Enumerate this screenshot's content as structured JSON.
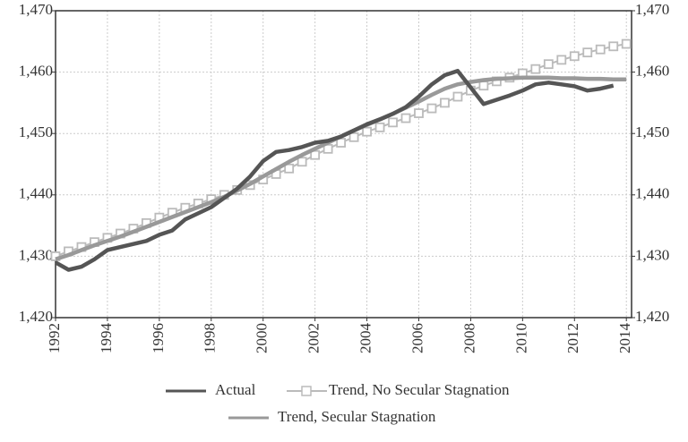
{
  "chart_data": {
    "type": "line",
    "x": [
      1992,
      1992.5,
      1993,
      1993.5,
      1994,
      1994.5,
      1995,
      1995.5,
      1996,
      1996.5,
      1997,
      1997.5,
      1998,
      1998.5,
      1999,
      1999.5,
      2000,
      2000.5,
      2001,
      2001.5,
      2002,
      2002.5,
      2003,
      2003.5,
      2004,
      2004.5,
      2005,
      2005.5,
      2006,
      2006.5,
      2007,
      2007.5,
      2008,
      2008.5,
      2009,
      2009.5,
      2010,
      2010.5,
      2011,
      2011.5,
      2012,
      2012.5,
      2013,
      2013.5,
      2014
    ],
    "series": [
      {
        "name": "Actual",
        "color": "#555555",
        "marker": false,
        "values": [
          1429,
          1427.8,
          1428.3,
          1429.5,
          1431,
          1431.5,
          1432,
          1432.5,
          1433.5,
          1434.2,
          1436,
          1437,
          1438,
          1439.5,
          1441,
          1443,
          1445.5,
          1447,
          1447.3,
          1447.8,
          1448.5,
          1448.8,
          1449.5,
          1450.5,
          1451.5,
          1452.3,
          1453.2,
          1454.3,
          1456,
          1458,
          1459.5,
          1460.2,
          1457.5,
          1454.8,
          1455.5,
          1456.2,
          1457,
          1458,
          1458.3,
          1458,
          1457.7,
          1457,
          1457.3,
          1457.8,
          null
        ]
      },
      {
        "name": "Trend, No Secular Stagnation",
        "color": "#bbbbbb",
        "marker": true,
        "values": [
          1430,
          1430.8,
          1431.5,
          1432.3,
          1433,
          1433.7,
          1434.5,
          1435.4,
          1436.3,
          1437.1,
          1437.9,
          1438.6,
          1439.3,
          1440,
          1440.8,
          1441.6,
          1442.5,
          1443.4,
          1444.3,
          1445.4,
          1446.5,
          1447.5,
          1448.5,
          1449.4,
          1450.3,
          1451,
          1451.8,
          1452.5,
          1453.3,
          1454.1,
          1455,
          1456,
          1457,
          1457.8,
          1458.5,
          1459.1,
          1459.8,
          1460.5,
          1461.3,
          1462,
          1462.6,
          1463.2,
          1463.7,
          1464.2,
          1464.6
        ]
      },
      {
        "name": "Trend, Secular Stagnation",
        "color": "#999999",
        "marker": false,
        "values": [
          1429.5,
          1430.2,
          1431,
          1431.8,
          1432.5,
          1433.2,
          1434,
          1434.8,
          1435.6,
          1436.4,
          1437.2,
          1438,
          1438.8,
          1439.7,
          1440.7,
          1441.8,
          1443,
          1444.2,
          1445.4,
          1446.5,
          1447.5,
          1448.5,
          1449.5,
          1450.5,
          1451.4,
          1452.3,
          1453.2,
          1454.2,
          1455.2,
          1456.3,
          1457.3,
          1458,
          1458.4,
          1458.7,
          1458.9,
          1459,
          1459.1,
          1459.1,
          1459.1,
          1459,
          1459,
          1458.9,
          1458.9,
          1458.8,
          1458.8
        ]
      }
    ],
    "xlim": [
      1992,
      2014.2
    ],
    "xticks": [
      1992,
      1994,
      1996,
      1998,
      2000,
      2002,
      2004,
      2006,
      2008,
      2010,
      2012,
      2014
    ],
    "ylim": [
      1420,
      1470
    ],
    "yticks": [
      {
        "value": 1420,
        "label": "1,420"
      },
      {
        "value": 1430,
        "label": "1,430"
      },
      {
        "value": 1440,
        "label": "1,440"
      },
      {
        "value": 1450,
        "label": "1,450"
      },
      {
        "value": 1460,
        "label": "1,460"
      },
      {
        "value": 1470,
        "label": "1,470"
      }
    ],
    "y2lim": [
      1420,
      1470
    ],
    "y2ticks": [
      {
        "value": 1420,
        "label": "1,420"
      },
      {
        "value": 1430,
        "label": "1,430"
      },
      {
        "value": 1440,
        "label": "1,440"
      },
      {
        "value": 1450,
        "label": "1,450"
      },
      {
        "value": 1460,
        "label": "1,460"
      },
      {
        "value": 1470,
        "label": "1,470"
      }
    ],
    "grid": true,
    "legend": "bottom"
  }
}
